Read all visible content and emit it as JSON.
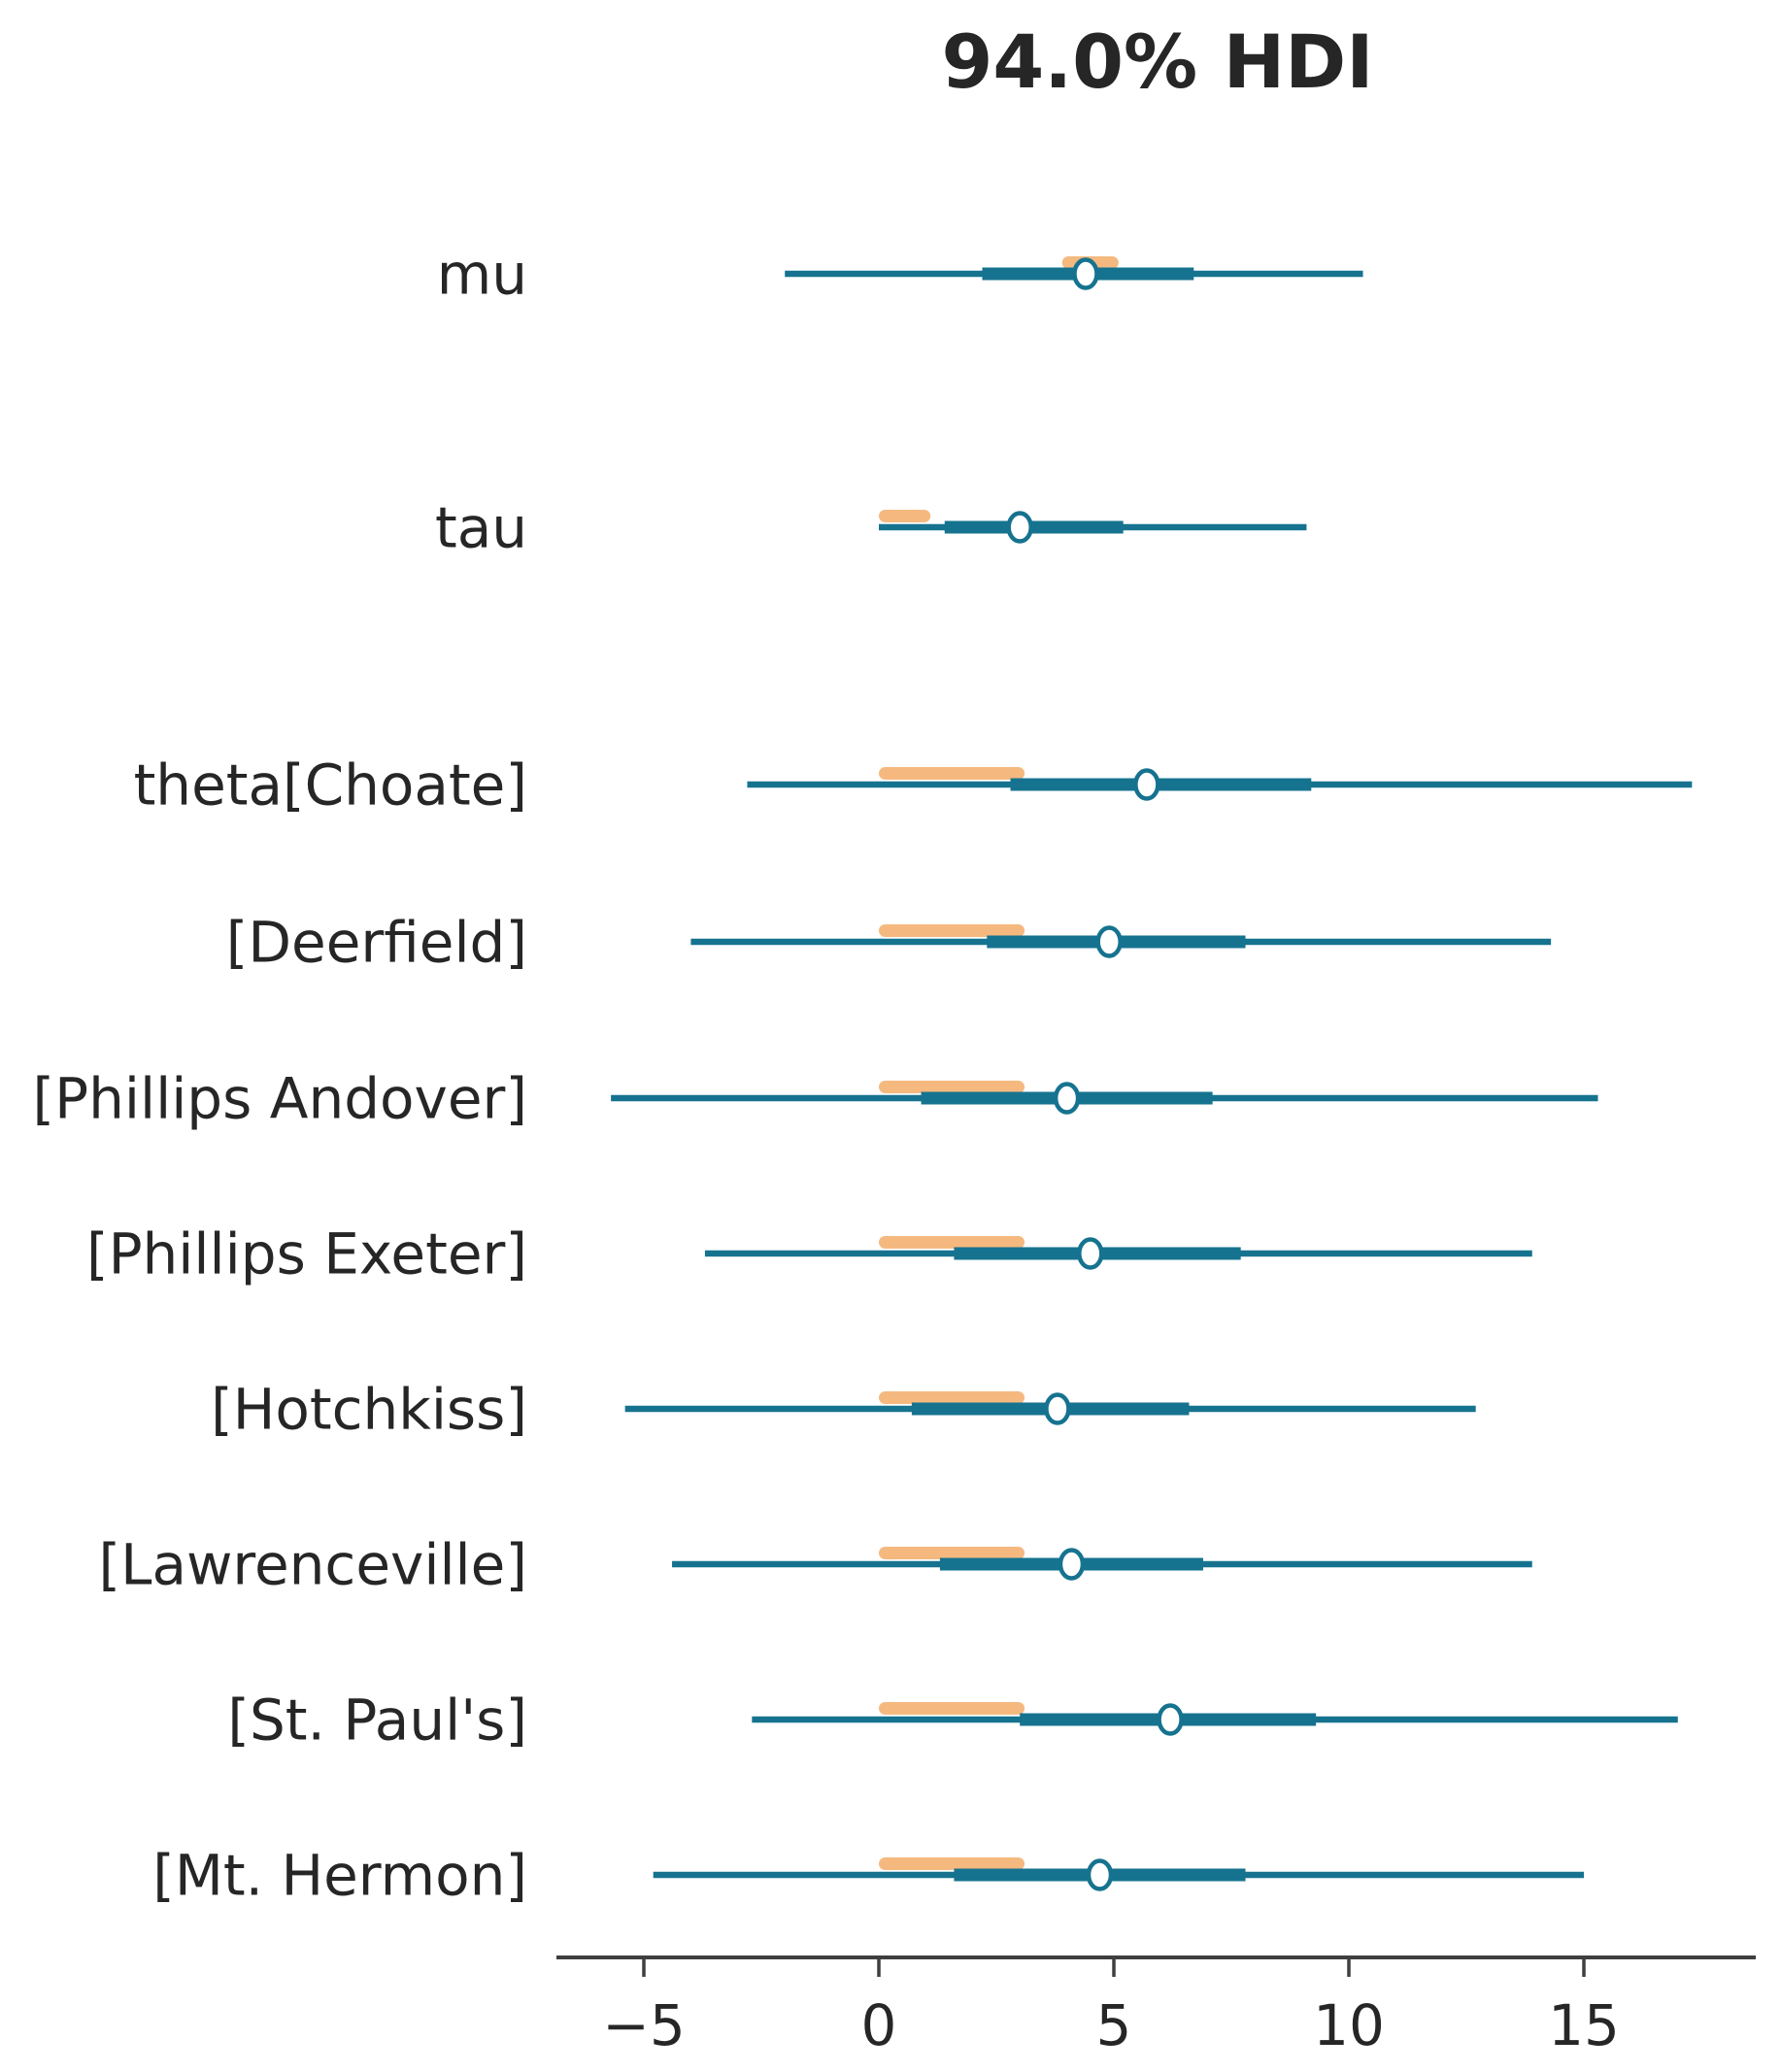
{
  "title": "94.0% HDI",
  "colors": {
    "interval": "#16738f",
    "rope_band": "#f5b97f",
    "text": "#262626",
    "axis": "#3f3f3f",
    "point_fill": "#ffffff"
  },
  "chart_data": {
    "type": "forest",
    "title": "94.0% HDI",
    "hdi_prob": 0.94,
    "xlabel": "",
    "ylabel": "",
    "grid": false,
    "legend_position": "none",
    "xlim": [
      -6.9,
      18.7
    ],
    "x_ticks": [
      -5,
      0,
      5,
      10,
      15
    ],
    "x_tick_labels": [
      "−5",
      "0",
      "5",
      "10",
      "15"
    ],
    "rows": [
      {
        "label": "mu",
        "median": 4.4,
        "hdi_94": [
          -2.0,
          10.3
        ],
        "iqr": [
          2.2,
          6.7
        ],
        "rope": [
          3.9,
          5.1
        ]
      },
      {
        "label": "tau",
        "median": 3.0,
        "hdi_94": [
          0.0,
          9.1
        ],
        "iqr": [
          1.4,
          5.2
        ],
        "rope": [
          0.0,
          1.1
        ]
      },
      {
        "label": "theta[Choate]",
        "median": 5.7,
        "hdi_94": [
          -2.8,
          17.3
        ],
        "iqr": [
          2.8,
          9.2
        ],
        "rope": [
          0.0,
          3.1
        ]
      },
      {
        "label": "[Deerfield]",
        "median": 4.9,
        "hdi_94": [
          -4.0,
          14.3
        ],
        "iqr": [
          2.3,
          7.8
        ],
        "rope": [
          0.0,
          3.1
        ]
      },
      {
        "label": "[Phillips Andover]",
        "median": 4.0,
        "hdi_94": [
          -5.7,
          15.3
        ],
        "iqr": [
          0.9,
          7.1
        ],
        "rope": [
          0.0,
          3.1
        ]
      },
      {
        "label": "[Phillips Exeter]",
        "median": 4.5,
        "hdi_94": [
          -3.7,
          13.9
        ],
        "iqr": [
          1.6,
          7.7
        ],
        "rope": [
          0.0,
          3.1
        ]
      },
      {
        "label": "[Hotchkiss]",
        "median": 3.8,
        "hdi_94": [
          -5.4,
          12.7
        ],
        "iqr": [
          0.7,
          6.6
        ],
        "rope": [
          0.0,
          3.1
        ]
      },
      {
        "label": "[Lawrenceville]",
        "median": 4.1,
        "hdi_94": [
          -4.4,
          13.9
        ],
        "iqr": [
          1.3,
          6.9
        ],
        "rope": [
          0.0,
          3.1
        ]
      },
      {
        "label": "[St. Paul's]",
        "median": 6.2,
        "hdi_94": [
          -2.7,
          17.0
        ],
        "iqr": [
          3.0,
          9.3
        ],
        "rope": [
          0.0,
          3.1
        ]
      },
      {
        "label": "[Mt. Hermon]",
        "median": 4.7,
        "hdi_94": [
          -4.8,
          15.0
        ],
        "iqr": [
          1.6,
          7.8
        ],
        "rope": [
          0.0,
          3.1
        ]
      }
    ]
  }
}
